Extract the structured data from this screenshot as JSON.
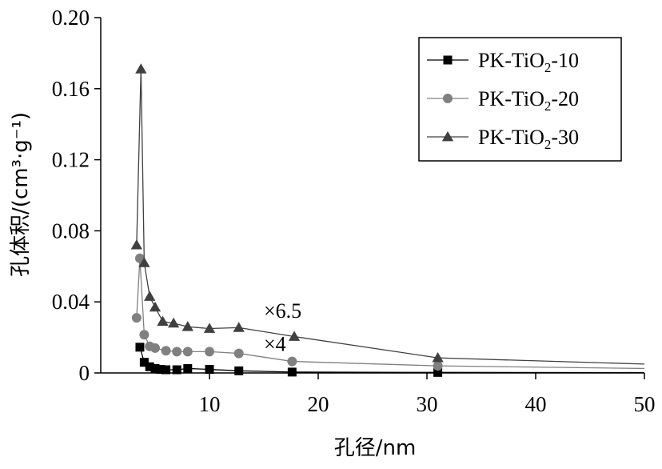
{
  "chart_data": {
    "type": "line",
    "xlabel": "孔径/nm",
    "ylabel": "孔体积/(cm³·g⁻¹)",
    "xlim": [
      0,
      50
    ],
    "ylim": [
      0,
      0.2
    ],
    "x_ticks": [
      "10",
      "20",
      "30",
      "40",
      "50"
    ],
    "y_ticks": [
      "0",
      "0.04",
      "0.08",
      "0.12",
      "0.16",
      "0.20"
    ],
    "legend_position": "top-right",
    "series": [
      {
        "name": "PK-TiO2-10",
        "marker": "square",
        "color": "#000000",
        "x": [
          3.6,
          4.0,
          4.5,
          5.0,
          5.5,
          6.0,
          7.0,
          8.0,
          10.0,
          12.7,
          17.6,
          31.0,
          50.0
        ],
        "y": [
          0.0145,
          0.006,
          0.0035,
          0.0025,
          0.002,
          0.0018,
          0.0018,
          0.0025,
          0.002,
          0.0012,
          0.0005,
          0.0003,
          0.0002
        ]
      },
      {
        "name": "PK-TiO2-20",
        "marker": "circle",
        "color": "#808080",
        "x": [
          3.3,
          3.6,
          4.0,
          4.5,
          5.0,
          6.0,
          7.0,
          8.0,
          10.0,
          12.7,
          17.6,
          31.0,
          50.0
        ],
        "y": [
          0.031,
          0.0645,
          0.0215,
          0.015,
          0.014,
          0.0125,
          0.012,
          0.012,
          0.012,
          0.011,
          0.0065,
          0.004,
          0.0025
        ]
      },
      {
        "name": "PK-TiO2-30",
        "marker": "triangle",
        "color": "#404040",
        "x": [
          3.3,
          3.7,
          4.0,
          4.5,
          5.0,
          5.7,
          6.7,
          8.0,
          10.0,
          12.7,
          17.8,
          31.0,
          50.0
        ],
        "y": [
          0.072,
          0.171,
          0.062,
          0.043,
          0.037,
          0.029,
          0.028,
          0.026,
          0.025,
          0.0255,
          0.0205,
          0.0085,
          0.005
        ]
      }
    ],
    "annotations": [
      {
        "text": "×6.5",
        "x": 15.0,
        "y": 0.031
      },
      {
        "text": "×4",
        "x": 15.0,
        "y": 0.0125
      }
    ]
  }
}
